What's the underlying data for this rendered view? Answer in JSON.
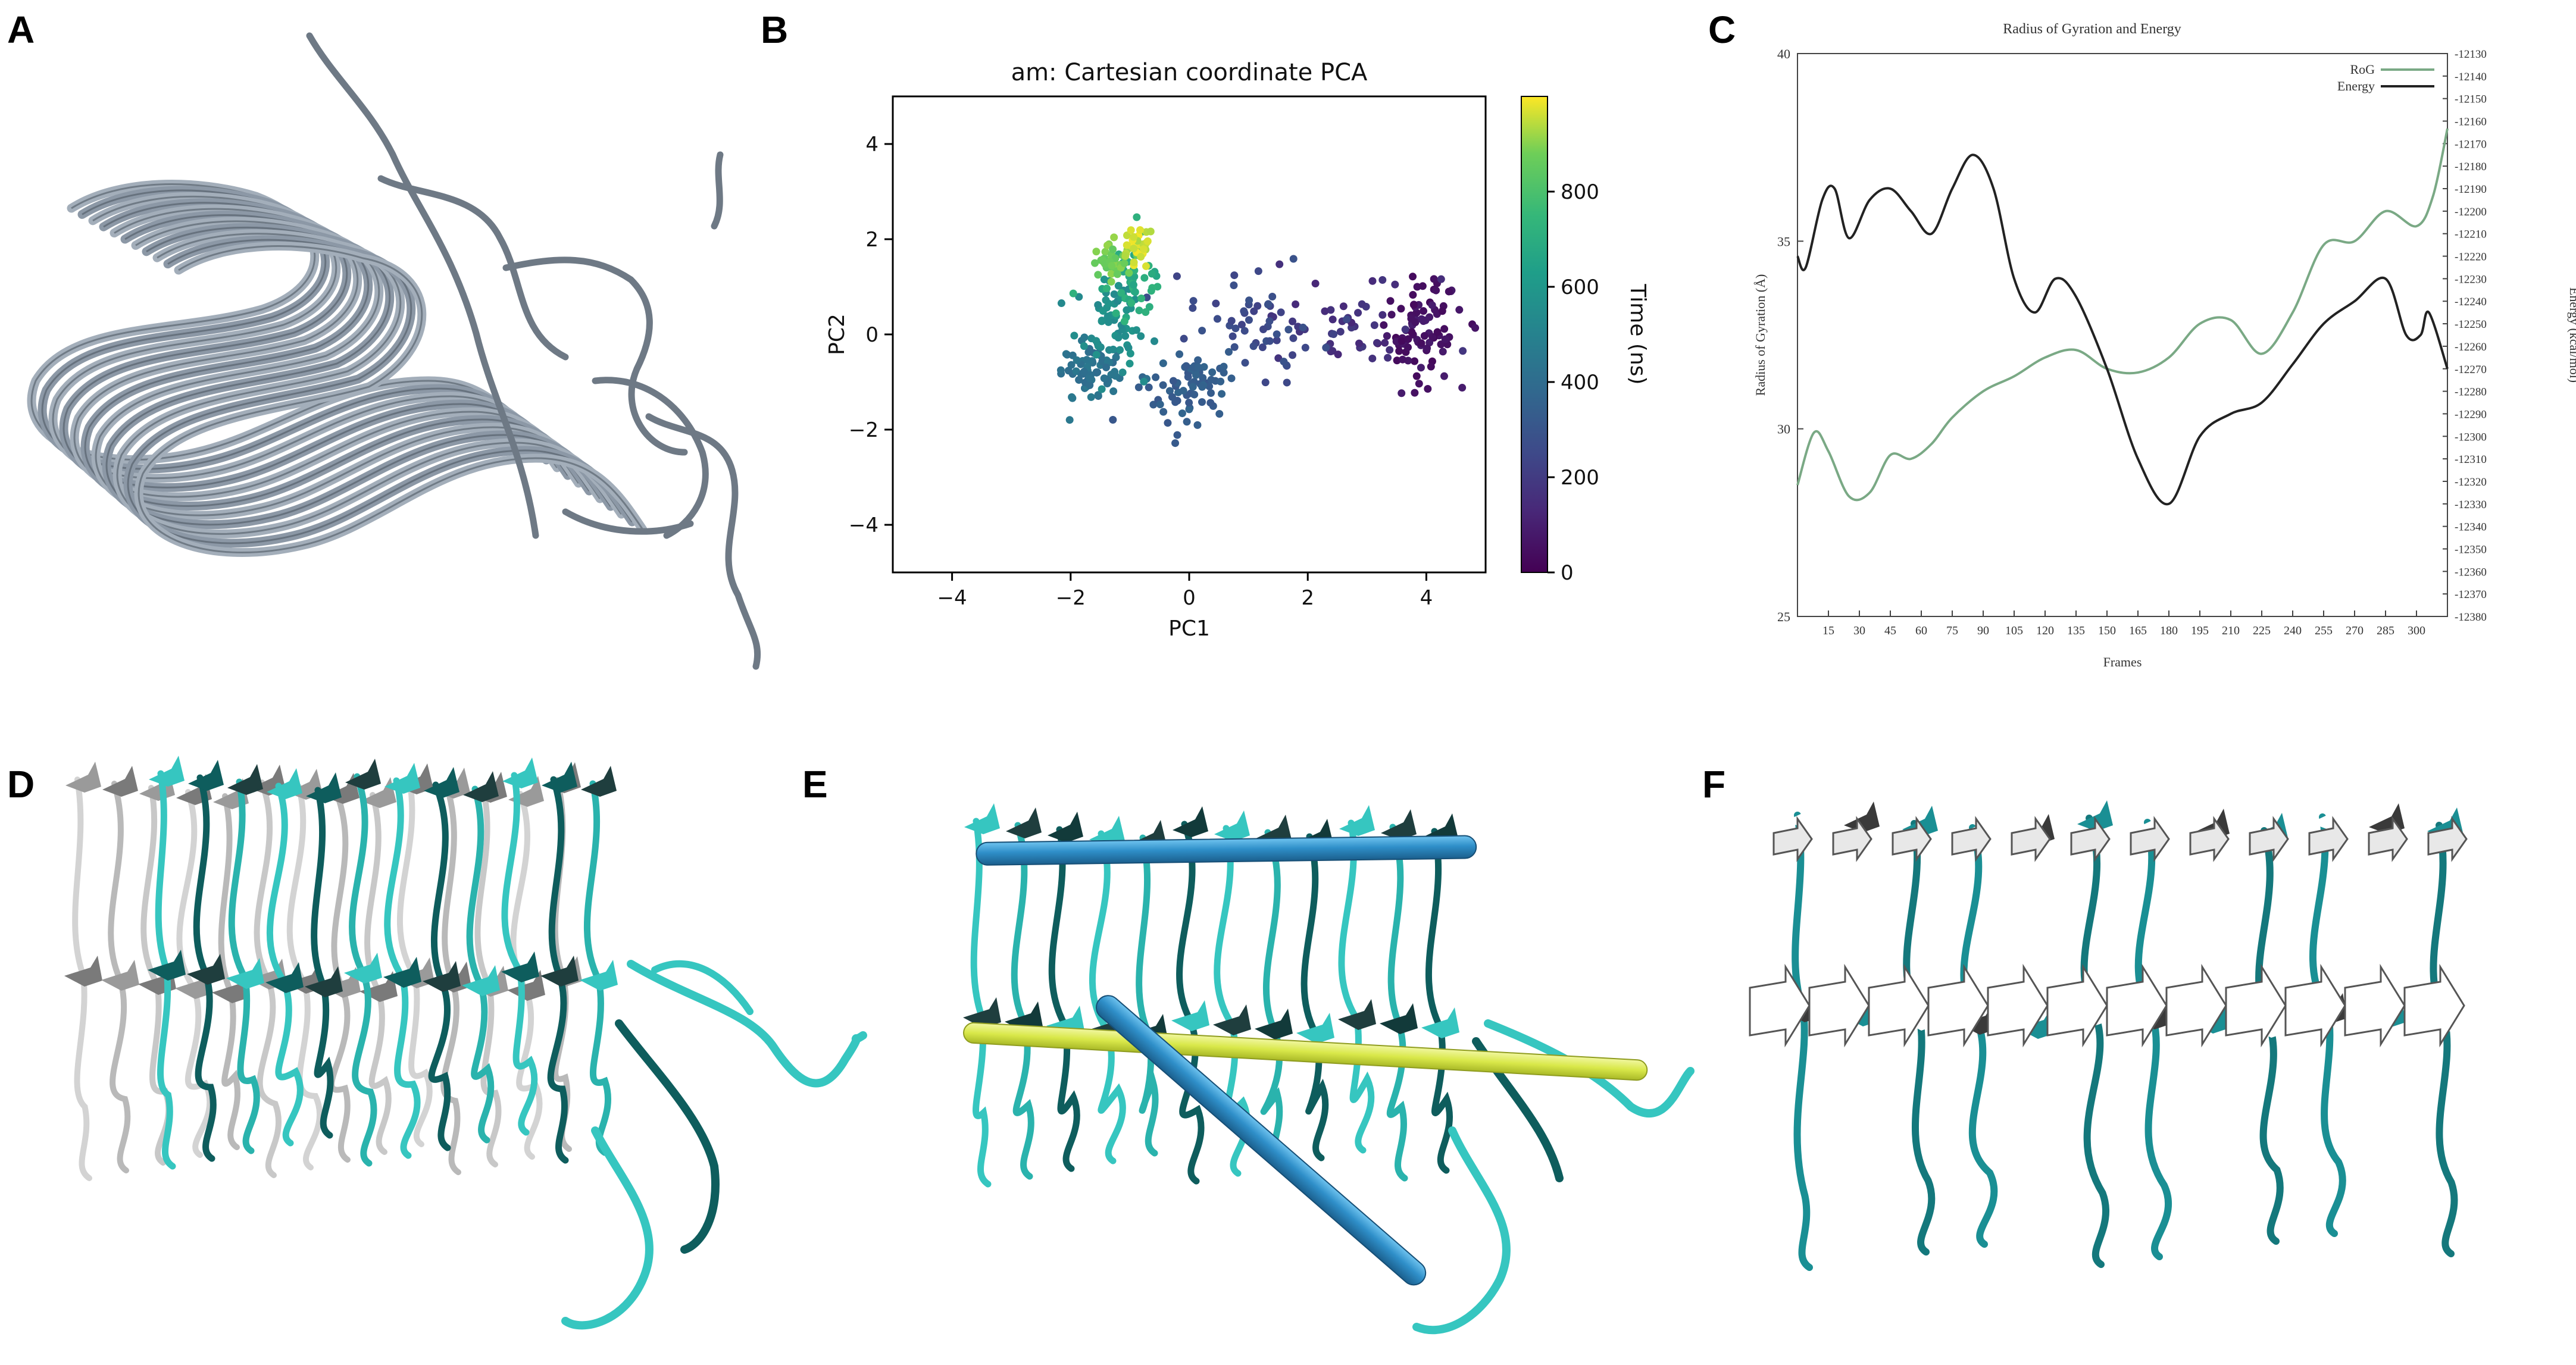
{
  "panels": {
    "A": {
      "letter": "A"
    },
    "B": {
      "letter": "B"
    },
    "C": {
      "letter": "C"
    },
    "D": {
      "letter": "D"
    },
    "E": {
      "letter": "E"
    },
    "F": {
      "letter": "F"
    }
  },
  "colors": {
    "ribbon_grey": "#8c98a6",
    "ribbon_dark": "#5a6470",
    "cyan": "#36c6c0",
    "cyan_dark": "#0e5d5d",
    "teal": "#1a8f94",
    "helix_blue": "#2f8fc9",
    "helix_yellow": "#d9e84a",
    "rog_green": "#7aa985",
    "energy_black": "#222222"
  },
  "chart_data": [
    {
      "panel": "B",
      "type": "scatter",
      "title": "am: Cartesian coordinate PCA",
      "xlabel": "PC1",
      "ylabel": "PC2",
      "xlim": [
        -5,
        5
      ],
      "ylim": [
        -5,
        5
      ],
      "xticks": [
        "−4",
        "−2",
        "0",
        "2",
        "4"
      ],
      "yticks": [
        "−4",
        "−2",
        "0",
        "2",
        "4"
      ],
      "xtick_values": [
        -4,
        -2,
        0,
        2,
        4
      ],
      "ytick_values": [
        -4,
        -2,
        0,
        2,
        4
      ],
      "colorbar": {
        "label": "Time (ns)",
        "range": [
          0,
          1000
        ],
        "ticks": [
          "0",
          "200",
          "400",
          "600",
          "800"
        ],
        "tick_values": [
          0,
          200,
          400,
          600,
          800
        ]
      },
      "clusters": [
        {
          "time": 60,
          "cx": 3.9,
          "cy": 0.1,
          "sx": 0.35,
          "sy": 0.55,
          "n": 90
        },
        {
          "time": 160,
          "cx": 2.6,
          "cy": 0.2,
          "sx": 0.7,
          "sy": 0.5,
          "n": 45
        },
        {
          "time": 260,
          "cx": 1.2,
          "cy": 0.2,
          "sx": 0.55,
          "sy": 0.5,
          "n": 55
        },
        {
          "time": 340,
          "cx": -0.1,
          "cy": -1.1,
          "sx": 0.35,
          "sy": 0.45,
          "n": 70
        },
        {
          "time": 430,
          "cx": -1.7,
          "cy": -0.8,
          "sx": 0.3,
          "sy": 0.35,
          "n": 70
        },
        {
          "time": 560,
          "cx": -1.3,
          "cy": 0.2,
          "sx": 0.3,
          "sy": 0.45,
          "n": 60
        },
        {
          "time": 700,
          "cx": -0.95,
          "cy": 1.2,
          "sx": 0.25,
          "sy": 0.4,
          "n": 45
        },
        {
          "time": 880,
          "cx": -1.35,
          "cy": 1.55,
          "sx": 0.2,
          "sy": 0.25,
          "n": 40
        },
        {
          "time": 960,
          "cx": -0.9,
          "cy": 1.85,
          "sx": 0.15,
          "sy": 0.2,
          "n": 30
        }
      ]
    },
    {
      "panel": "C",
      "type": "line",
      "title": "Radius of Gyration and Energy",
      "xlabel": "Frames",
      "ylabel": "Radius of Gyration (Å)",
      "y2label": "Energy (kcal/mol)",
      "xlim": [
        0,
        315
      ],
      "ylim": [
        25,
        40
      ],
      "y2lim": [
        -12380,
        -12130
      ],
      "xticks": [
        "15",
        "30",
        "45",
        "60",
        "75",
        "90",
        "105",
        "120",
        "135",
        "150",
        "165",
        "180",
        "195",
        "210",
        "225",
        "240",
        "255",
        "270",
        "285",
        "300"
      ],
      "xtick_values": [
        15,
        30,
        45,
        60,
        75,
        90,
        105,
        120,
        135,
        150,
        165,
        180,
        195,
        210,
        225,
        240,
        255,
        270,
        285,
        300
      ],
      "yticks": [
        "25",
        "30",
        "35",
        "40"
      ],
      "ytick_values": [
        25,
        30,
        35,
        40
      ],
      "y2ticks": [
        "-12130",
        "-12140",
        "-12150",
        "-12160",
        "-12170",
        "-12180",
        "-12190",
        "-12200",
        "-12210",
        "-12220",
        "-12230",
        "-12240",
        "-12250",
        "-12260",
        "-12270",
        "-12280",
        "-12290",
        "-12300",
        "-12310",
        "-12320",
        "-12330",
        "-12340",
        "-12350",
        "-12360",
        "-12370",
        "-12380"
      ],
      "y2tick_values": [
        -12130,
        -12140,
        -12150,
        -12160,
        -12170,
        -12180,
        -12190,
        -12200,
        -12210,
        -12220,
        -12230,
        -12240,
        -12250,
        -12260,
        -12270,
        -12280,
        -12290,
        -12300,
        -12310,
        -12320,
        -12330,
        -12340,
        -12350,
        -12360,
        -12370,
        -12380
      ],
      "legend": "top-right",
      "series": [
        {
          "name": "RoG",
          "axis": "left",
          "x": [
            0,
            8,
            15,
            25,
            35,
            45,
            55,
            65,
            75,
            90,
            105,
            120,
            135,
            150,
            165,
            180,
            195,
            210,
            225,
            240,
            255,
            270,
            285,
            300,
            308,
            315
          ],
          "y": [
            28.5,
            29.9,
            29.4,
            28.2,
            28.3,
            29.3,
            29.2,
            29.6,
            30.3,
            31.0,
            31.4,
            31.9,
            32.1,
            31.6,
            31.5,
            31.9,
            32.8,
            32.9,
            32.0,
            33.1,
            34.9,
            35.0,
            35.8,
            35.4,
            36.2,
            38.0
          ]
        },
        {
          "name": "Energy",
          "axis": "right",
          "x": [
            0,
            4,
            12,
            18,
            25,
            35,
            45,
            55,
            65,
            75,
            85,
            95,
            105,
            115,
            125,
            135,
            150,
            165,
            180,
            195,
            210,
            225,
            240,
            255,
            270,
            285,
            295,
            302,
            306,
            315
          ],
          "y": [
            -12220,
            -12225,
            -12195,
            -12190,
            -12212,
            -12195,
            -12190,
            -12200,
            -12210,
            -12190,
            -12175,
            -12190,
            -12230,
            -12245,
            -12230,
            -12238,
            -12270,
            -12310,
            -12330,
            -12300,
            -12290,
            -12285,
            -12268,
            -12250,
            -12240,
            -12230,
            -12255,
            -12255,
            -12245,
            -12270
          ]
        }
      ]
    }
  ]
}
